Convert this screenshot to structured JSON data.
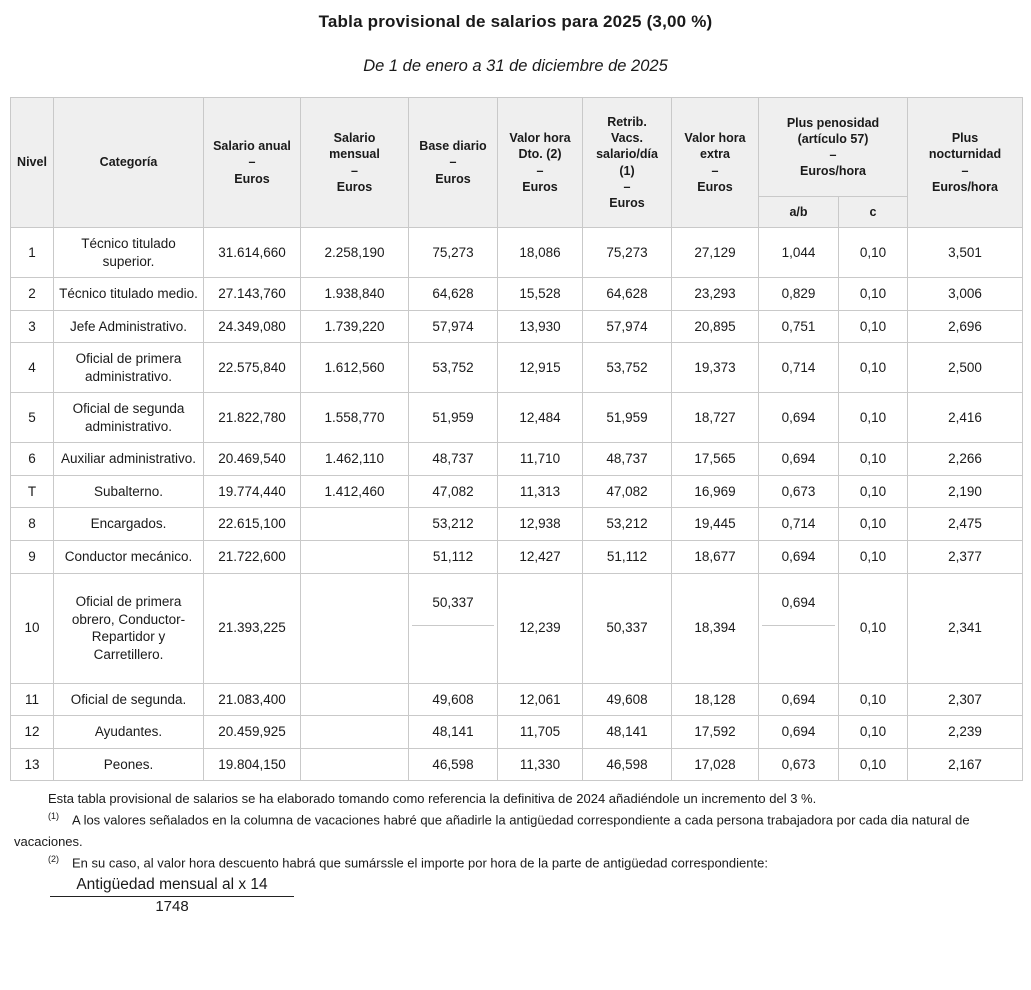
{
  "title": "Tabla provisional de salarios para 2025 (3,00 %)",
  "subtitle": "De 1 de enero a 31 de diciembre de 2025",
  "colors": {
    "header_bg": "#efefef",
    "table_border": "#c9c9c9",
    "text": "#1a1a1a",
    "background": "#ffffff"
  },
  "table": {
    "headers": {
      "nivel": "Nivel",
      "categoria": "Categoría",
      "salario_anual": "Salario anual\n–\nEuros",
      "salario_mensual": "Salario\nmensual\n–\nEuros",
      "base_diario": "Base diario\n–\nEuros",
      "valor_hora_dto": "Valor hora\nDto. (2)\n–\nEuros",
      "retrib_vacs": "Retrib.\nVacs.\nsalario/día\n(1)\n–\nEuros",
      "valor_hora_extra": "Valor hora\nextra\n–\nEuros",
      "plus_penosidad": "Plus penosidad\n(artículo 57)\n–\nEuros/hora",
      "plus_penosidad_ab": "a/b",
      "plus_penosidad_c": "c",
      "plus_nocturnidad": "Plus\nnocturnidad\n–\nEuros/hora"
    },
    "value_columns": [
      "salario_anual",
      "salario_mensual",
      "base_diario",
      "valor_hora_dto",
      "retrib_vacs",
      "valor_hora_extra",
      "plus_penosidad_ab",
      "plus_penosidad_c",
      "plus_nocturnidad"
    ],
    "rows": [
      {
        "nivel": "1",
        "categoria": "Técnico titulado superior.",
        "values": [
          "31.614,660",
          "2.258,190",
          "75,273",
          "18,086",
          "75,273",
          "27,129",
          "1,044",
          "0,10",
          "3,501"
        ]
      },
      {
        "nivel": "2",
        "categoria": "Técnico titulado medio.",
        "values": [
          "27.143,760",
          "1.938,840",
          "64,628",
          "15,528",
          "64,628",
          "23,293",
          "0,829",
          "0,10",
          "3,006"
        ]
      },
      {
        "nivel": "3",
        "categoria": "Jefe Administrativo.",
        "values": [
          "24.349,080",
          "1.739,220",
          "57,974",
          "13,930",
          "57,974",
          "20,895",
          "0,751",
          "0,10",
          "2,696"
        ]
      },
      {
        "nivel": "4",
        "categoria": "Oficial de primera administrativo.",
        "values": [
          "22.575,840",
          "1.612,560",
          "53,752",
          "12,915",
          "53,752",
          "19,373",
          "0,714",
          "0,10",
          "2,500"
        ]
      },
      {
        "nivel": "5",
        "categoria": "Oficial de segunda administrativo.",
        "values": [
          "21.822,780",
          "1.558,770",
          "51,959",
          "12,484",
          "51,959",
          "18,727",
          "0,694",
          "0,10",
          "2,416"
        ]
      },
      {
        "nivel": "6",
        "categoria": "Auxiliar administrativo.",
        "values": [
          "20.469,540",
          "1.462,110",
          "48,737",
          "11,710",
          "48,737",
          "17,565",
          "0,694",
          "0,10",
          "2,266"
        ]
      },
      {
        "nivel": "T",
        "categoria": "Subalterno.",
        "values": [
          "19.774,440",
          "1.412,460",
          "47,082",
          "11,313",
          "47,082",
          "16,969",
          "0,673",
          "0,10",
          "2,190"
        ]
      },
      {
        "nivel": "8",
        "categoria": "Encargados.",
        "values": [
          "22.615,100",
          "",
          "53,212",
          "12,938",
          "53,212",
          "19,445",
          "0,714",
          "0,10",
          "2,475"
        ]
      },
      {
        "nivel": "9",
        "categoria": "Conductor mecánico.",
        "values": [
          "21.722,600",
          "",
          "51,112",
          "12,427",
          "51,112",
          "18,677",
          "0,694",
          "0,10",
          "2,377"
        ]
      },
      {
        "nivel": "10",
        "categoria": "Oficial de primera obrero, Conductor-Repartidor y Carretillero.",
        "values": [
          "21.393,225",
          "",
          "50,337",
          "12,239",
          "50,337",
          "18,394",
          "0,694",
          "0,10",
          "2,341"
        ],
        "split_cells": [
          2,
          6
        ]
      },
      {
        "nivel": "11",
        "categoria": "Oficial de segunda.",
        "values": [
          "21.083,400",
          "",
          "49,608",
          "12,061",
          "49,608",
          "18,128",
          "0,694",
          "0,10",
          "2,307"
        ]
      },
      {
        "nivel": "12",
        "categoria": "Ayudantes.",
        "values": [
          "20.459,925",
          "",
          "48,141",
          "11,705",
          "48,141",
          "17,592",
          "0,694",
          "0,10",
          "2,239"
        ]
      },
      {
        "nivel": "13",
        "categoria": "Peones.",
        "values": [
          "19.804,150",
          "",
          "46,598",
          "11,330",
          "46,598",
          "17,028",
          "0,673",
          "0,10",
          "2,167"
        ]
      }
    ]
  },
  "footnotes": {
    "general": "Esta tabla provisional de salarios se ha elaborado tomando como referencia la definitiva de 2024 añadiéndole un incremento del 3 %.",
    "n1_marker": "(1)",
    "n1": "A los valores señalados en la columna de vacaciones habré que añadirle la antigüedad correspondiente a cada persona trabajadora por cada dia natural de vacaciones.",
    "n2_marker": "(2)",
    "n2": "En su caso, al valor hora descuento habrá que sumárssle el importe por hora de la parte de antigüedad correspondiente:"
  },
  "fraction": {
    "numerator": "Antigüedad mensual al x 14",
    "denominator": "1748"
  }
}
